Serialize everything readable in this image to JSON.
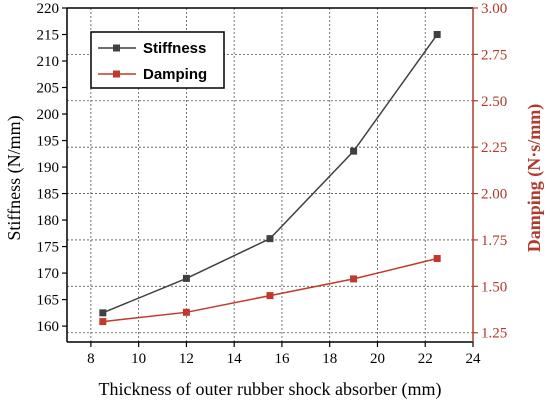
{
  "colors": {
    "stiffness": "#404040",
    "damping": "#c0392b",
    "damping_axis": "#b03a2e",
    "axis": "#000000",
    "grid": "#555555"
  },
  "chart_data": {
    "type": "line",
    "xlabel": "Thickness of outer rubber shock absorber (mm)",
    "ylabel": "Stiffness (N/mm)",
    "y2label": "Damping (N·s/mm)",
    "xlim": [
      7,
      24
    ],
    "ylim": [
      157,
      220
    ],
    "y2lim": [
      1.2,
      3.0
    ],
    "xticks": [
      8,
      10,
      12,
      14,
      16,
      18,
      20,
      22,
      24
    ],
    "yticks": [
      160,
      165,
      170,
      175,
      180,
      185,
      190,
      195,
      200,
      205,
      210,
      215,
      220
    ],
    "y2ticks": [
      "1.25",
      "1.50",
      "1.75",
      "2.00",
      "2.25",
      "2.50",
      "2.75",
      "3.00"
    ],
    "grid": true,
    "legend_position": "top-left",
    "series": [
      {
        "name": "Stiffness",
        "axis": "left",
        "marker": "square",
        "x": [
          8.5,
          12,
          15.5,
          19,
          22.5
        ],
        "y": [
          162.5,
          169,
          176.5,
          193,
          215
        ]
      },
      {
        "name": "Damping",
        "axis": "right",
        "marker": "square",
        "x": [
          8.5,
          12,
          15.5,
          19,
          22.5
        ],
        "y": [
          1.31,
          1.36,
          1.45,
          1.54,
          1.65
        ]
      }
    ]
  }
}
